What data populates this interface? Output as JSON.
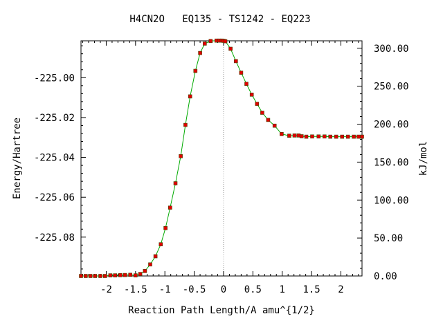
{
  "chart_data": {
    "type": "line",
    "title": "H4CN2O   EQ135 - TS1242 - EQ223",
    "xlabel": "Reaction Path Length/A amu^{1/2}",
    "ylabel": "Energy/Hartree",
    "y2label": "kJ/mol",
    "xlim": [
      -2.43,
      2.36
    ],
    "ylim": [
      -225.0995,
      -224.9815
    ],
    "y2lim": [
      0.0,
      309.8
    ],
    "x_ticks": [
      -2,
      -1.5,
      -1,
      -0.5,
      0,
      0.5,
      1,
      1.5,
      2
    ],
    "x_tick_labels": [
      "-2",
      "-1.5",
      "-1",
      "-0.5",
      "0",
      "0.5",
      "1",
      "1.5",
      "2"
    ],
    "y_ticks": [
      -225.08,
      -225.06,
      -225.04,
      -225.02,
      -225.0
    ],
    "y_tick_labels": [
      "-225.08",
      "-225.06",
      "-225.04",
      "-225.02",
      "-225.00"
    ],
    "y2_ticks": [
      0,
      50,
      100,
      150,
      200,
      250,
      300
    ],
    "y2_tick_labels": [
      "0.00",
      "50.00",
      "100.00",
      "150.00",
      "200.00",
      "250.00",
      "300.00"
    ],
    "ts_marker_x": 0.0,
    "grid": false,
    "legend": "none",
    "colors": {
      "line": "#00aa00",
      "marker": "#e00000",
      "ts_line": "#999999",
      "axes": "#000000"
    },
    "series": [
      {
        "x": [
          -2.43,
          -2.35,
          -2.27,
          -2.19,
          -2.1,
          -2.02,
          -1.93,
          -1.85,
          -1.76,
          -1.68,
          -1.59,
          -1.5,
          -1.42,
          -1.34,
          -1.25,
          -1.16,
          -1.07,
          -0.99,
          -0.91,
          -0.82,
          -0.73,
          -0.65,
          -0.57,
          -0.48,
          -0.4,
          -0.32,
          -0.22,
          -0.12,
          -0.07,
          -0.03,
          0.0,
          0.03,
          0.12,
          0.21,
          0.3,
          0.39,
          0.48,
          0.57,
          0.66,
          0.76,
          0.87,
          0.99,
          1.12,
          1.21,
          1.28,
          1.33,
          1.41,
          1.51,
          1.62,
          1.72,
          1.82,
          1.92,
          2.02,
          2.12,
          2.22,
          2.3,
          2.36
        ],
        "y": [
          -225.0995,
          -225.0995,
          -225.0995,
          -225.0995,
          -225.0995,
          -225.0995,
          -225.0992,
          -225.0992,
          -225.0991,
          -225.099,
          -225.0989,
          -225.0992,
          -225.0985,
          -225.097,
          -225.0937,
          -225.0896,
          -225.0836,
          -225.0755,
          -225.0652,
          -225.053,
          -225.0394,
          -225.0237,
          -225.0094,
          -224.9966,
          -224.9876,
          -224.9829,
          -224.9816,
          -224.9814,
          -224.9814,
          -224.9814,
          -224.9815,
          -224.9817,
          -224.9855,
          -224.9917,
          -224.9975,
          -225.0031,
          -225.0085,
          -225.0131,
          -225.0176,
          -225.0212,
          -225.0241,
          -225.0283,
          -225.0291,
          -225.029,
          -225.029,
          -225.0294,
          -225.0296,
          -225.0295,
          -225.0295,
          -225.0295,
          -225.0296,
          -225.0296,
          -225.0296,
          -225.0296,
          -225.0296,
          -225.0296,
          -225.0296
        ]
      }
    ]
  }
}
